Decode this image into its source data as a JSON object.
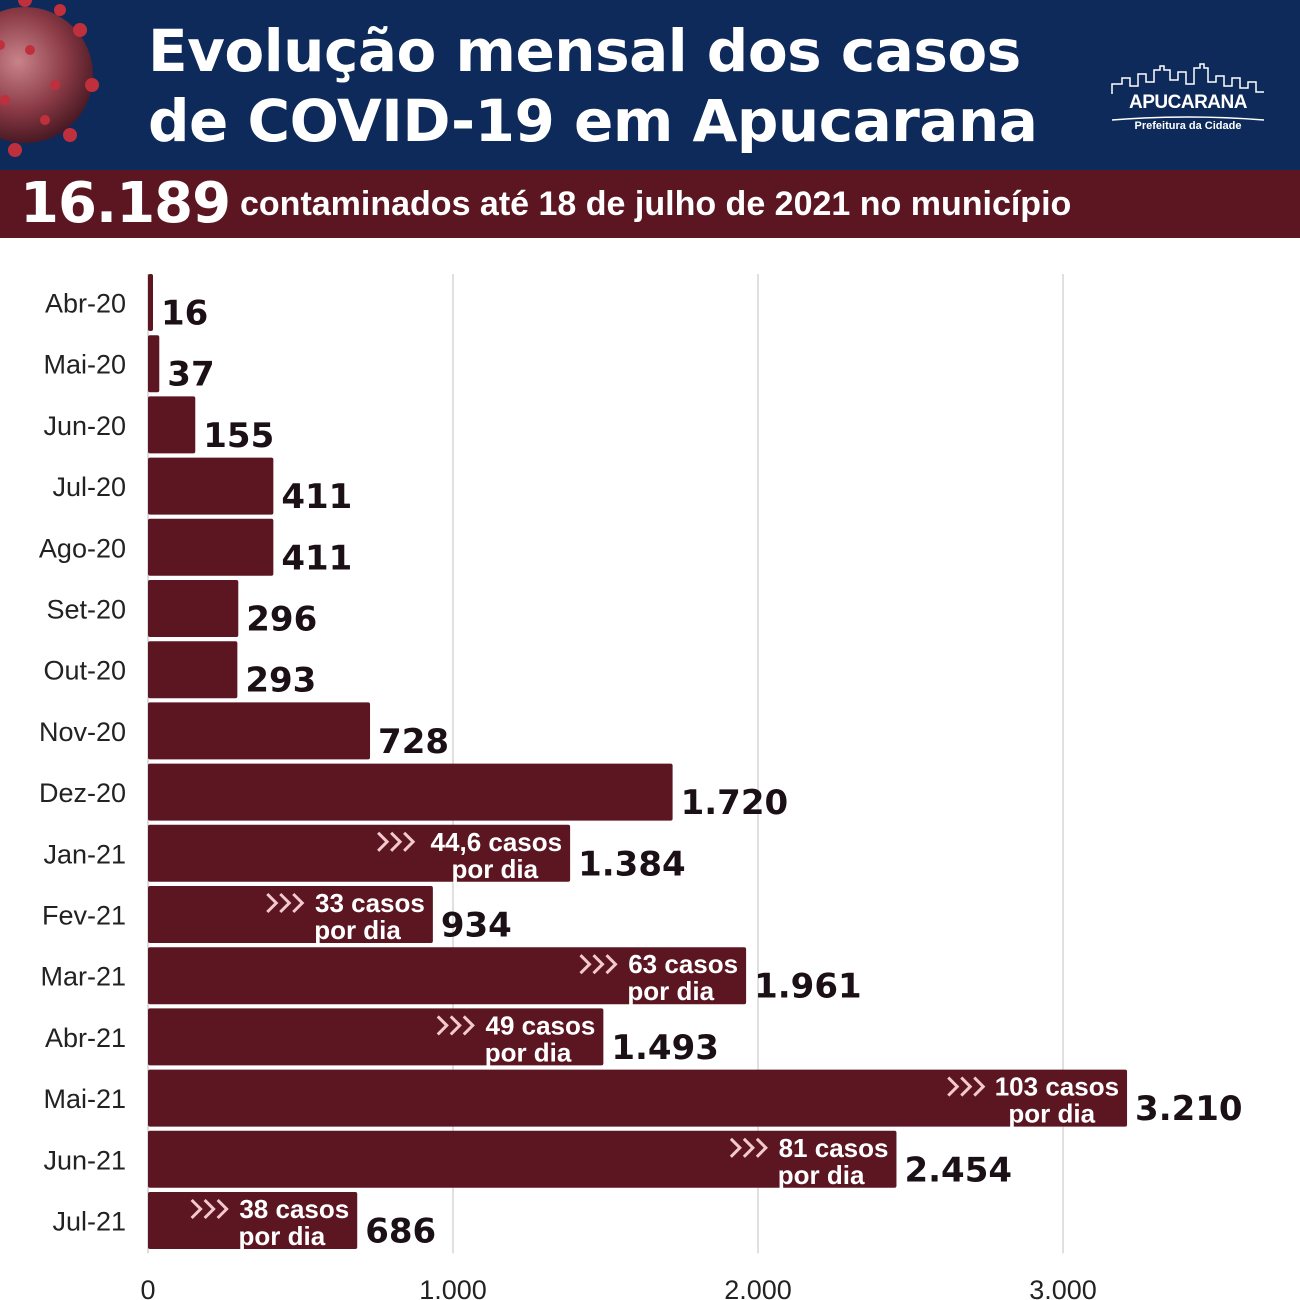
{
  "header": {
    "title_line1": "Evolução mensal dos casos",
    "title_line2": "de COVID-19 em Apucarana",
    "logo_name": "APUCARANA",
    "logo_sub": "Prefeitura da Cidade"
  },
  "banner": {
    "number": "16.189",
    "text": "contaminados até 18 de julho de 2021 no município"
  },
  "colors": {
    "header_bg": "#0e2a5a",
    "banner_bg": "#5c1622",
    "bar": "#5c1622"
  },
  "chart_data": {
    "type": "bar",
    "orientation": "horizontal",
    "categories": [
      "Abr-20",
      "Mai-20",
      "Jun-20",
      "Jul-20",
      "Ago-20",
      "Set-20",
      "Out-20",
      "Nov-20",
      "Dez-20",
      "Jan-21",
      "Fev-21",
      "Mar-21",
      "Abr-21",
      "Mai-21",
      "Jun-21",
      "Jul-21"
    ],
    "values": [
      16,
      37,
      155,
      411,
      411,
      296,
      293,
      728,
      1720,
      1384,
      934,
      1961,
      1493,
      3210,
      2454,
      686
    ],
    "value_labels": [
      "16",
      "37",
      "155",
      "411",
      "411",
      "296",
      "293",
      "728",
      "1.720",
      "1.384",
      "934",
      "1.961",
      "1.493",
      "3.210",
      "2.454",
      "686"
    ],
    "annotations": [
      {
        "category": "Jan-21",
        "line1": "44,6 casos",
        "line2": "por dia"
      },
      {
        "category": "Fev-21",
        "line1": "33 casos",
        "line2": "por dia"
      },
      {
        "category": "Mar-21",
        "line1": "63 casos",
        "line2": "por dia"
      },
      {
        "category": "Abr-21",
        "line1": "49 casos",
        "line2": "por dia"
      },
      {
        "category": "Mai-21",
        "line1": "103 casos",
        "line2": "por dia"
      },
      {
        "category": "Jun-21",
        "line1": "81 casos",
        "line2": "por dia"
      },
      {
        "category": "Jul-21",
        "line1": "38 casos",
        "line2": "por dia"
      }
    ],
    "xticks": [
      0,
      1000,
      2000,
      3000
    ],
    "xtick_labels": [
      "0",
      "1.000",
      "2.000",
      "3.000"
    ],
    "xlim": [
      0,
      3700
    ],
    "grid": true,
    "legend": "none"
  }
}
